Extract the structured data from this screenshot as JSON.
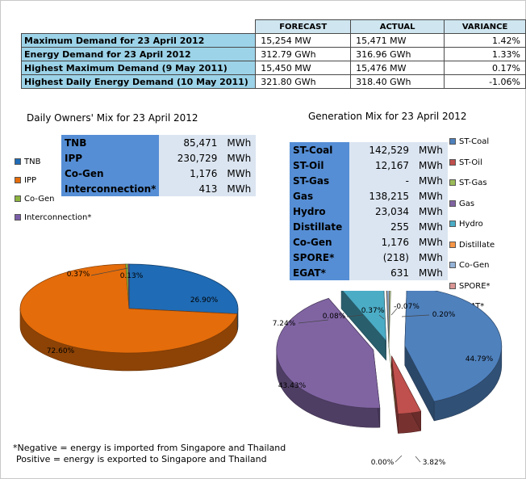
{
  "summary": {
    "headers": [
      "FORECAST",
      "ACTUAL",
      "VARIANCE"
    ],
    "rows": [
      {
        "label": "Maximum Demand for 23 April 2012",
        "forecast": "15,254  MW",
        "actual": "15,471  MW",
        "variance": "1.42%"
      },
      {
        "label": "Energy Demand for 23 April 2012",
        "forecast": "312.79  GWh",
        "actual": "316.96  GWh",
        "variance": "1.33%"
      },
      {
        "label": "Highest Maximum Demand (9 May 2011)",
        "forecast": "15,450  MW",
        "actual": "15,476  MW",
        "variance": "0.17%"
      },
      {
        "label": "Highest Daily Energy Demand (10 May 2011)",
        "forecast": "321.80  GWh",
        "actual": "318.40  GWh",
        "variance": "-1.06%"
      }
    ]
  },
  "owners": {
    "title": "Daily Owners' Mix for 23 April 2012",
    "rows": [
      {
        "name": "TNB",
        "value": "85,471",
        "unit": "MWh"
      },
      {
        "name": "IPP",
        "value": "230,729",
        "unit": "MWh"
      },
      {
        "name": "Co-Gen",
        "value": "1,176",
        "unit": "MWh"
      },
      {
        "name": "Interconnection*",
        "value": "413",
        "unit": "MWh"
      }
    ]
  },
  "generation": {
    "title": "Generation Mix for 23 April 2012",
    "rows": [
      {
        "name": "ST-Coal",
        "value": "142,529",
        "unit": "MWh"
      },
      {
        "name": "ST-Oil",
        "value": "12,167",
        "unit": "MWh"
      },
      {
        "name": "ST-Gas",
        "value": "-",
        "unit": "MWh"
      },
      {
        "name": "Gas",
        "value": "138,215",
        "unit": "MWh"
      },
      {
        "name": "Hydro",
        "value": "23,034",
        "unit": "MWh"
      },
      {
        "name": "Distillate",
        "value": "255",
        "unit": "MWh"
      },
      {
        "name": "Co-Gen",
        "value": "1,176",
        "unit": "MWh"
      },
      {
        "name": "SPORE*",
        "value": "(218)",
        "unit": "MWh"
      },
      {
        "name": "EGAT*",
        "value": "631",
        "unit": "MWh"
      }
    ]
  },
  "footnote": {
    "line1": "*Negative = energy is imported from Singapore and Thailand",
    "line2": "Positive = energy is exported to Singapore and Thailand"
  },
  "chart_data": [
    {
      "type": "pie",
      "title": "Daily Owners' Mix for 23 April 2012",
      "labels": [
        "TNB",
        "IPP",
        "Co-Gen",
        "Interconnection*"
      ],
      "values": [
        26.9,
        72.6,
        0.37,
        0.13
      ],
      "value_labels": [
        "26.90%",
        "72.60%",
        "0.37%",
        "0.13%"
      ],
      "colors": [
        "#1f6bb5",
        "#e46c0a",
        "#8db43f",
        "#7b5ea7"
      ],
      "legend_position": "left"
    },
    {
      "type": "pie",
      "title": "Generation Mix for 23 April 2012",
      "labels": [
        "ST-Coal",
        "ST-Oil",
        "ST-Gas",
        "Gas",
        "Hydro",
        "Distillate",
        "Co-Gen",
        "SPORE*",
        "EGAT*"
      ],
      "values": [
        44.79,
        3.82,
        0.0,
        43.43,
        7.24,
        0.08,
        0.37,
        -0.07,
        0.2
      ],
      "value_labels": [
        "44.79%",
        "3.82%",
        "0.00%",
        "43.43%",
        "7.24%",
        "0.08%",
        "0.37%",
        "-0.07%",
        "0.20%"
      ],
      "colors": [
        "#4f81bd",
        "#c0504d",
        "#9bbb59",
        "#8064a2",
        "#4bacc6",
        "#f79646",
        "#95b3d7",
        "#d99694",
        "#c3d69b"
      ],
      "legend_position": "right"
    }
  ]
}
